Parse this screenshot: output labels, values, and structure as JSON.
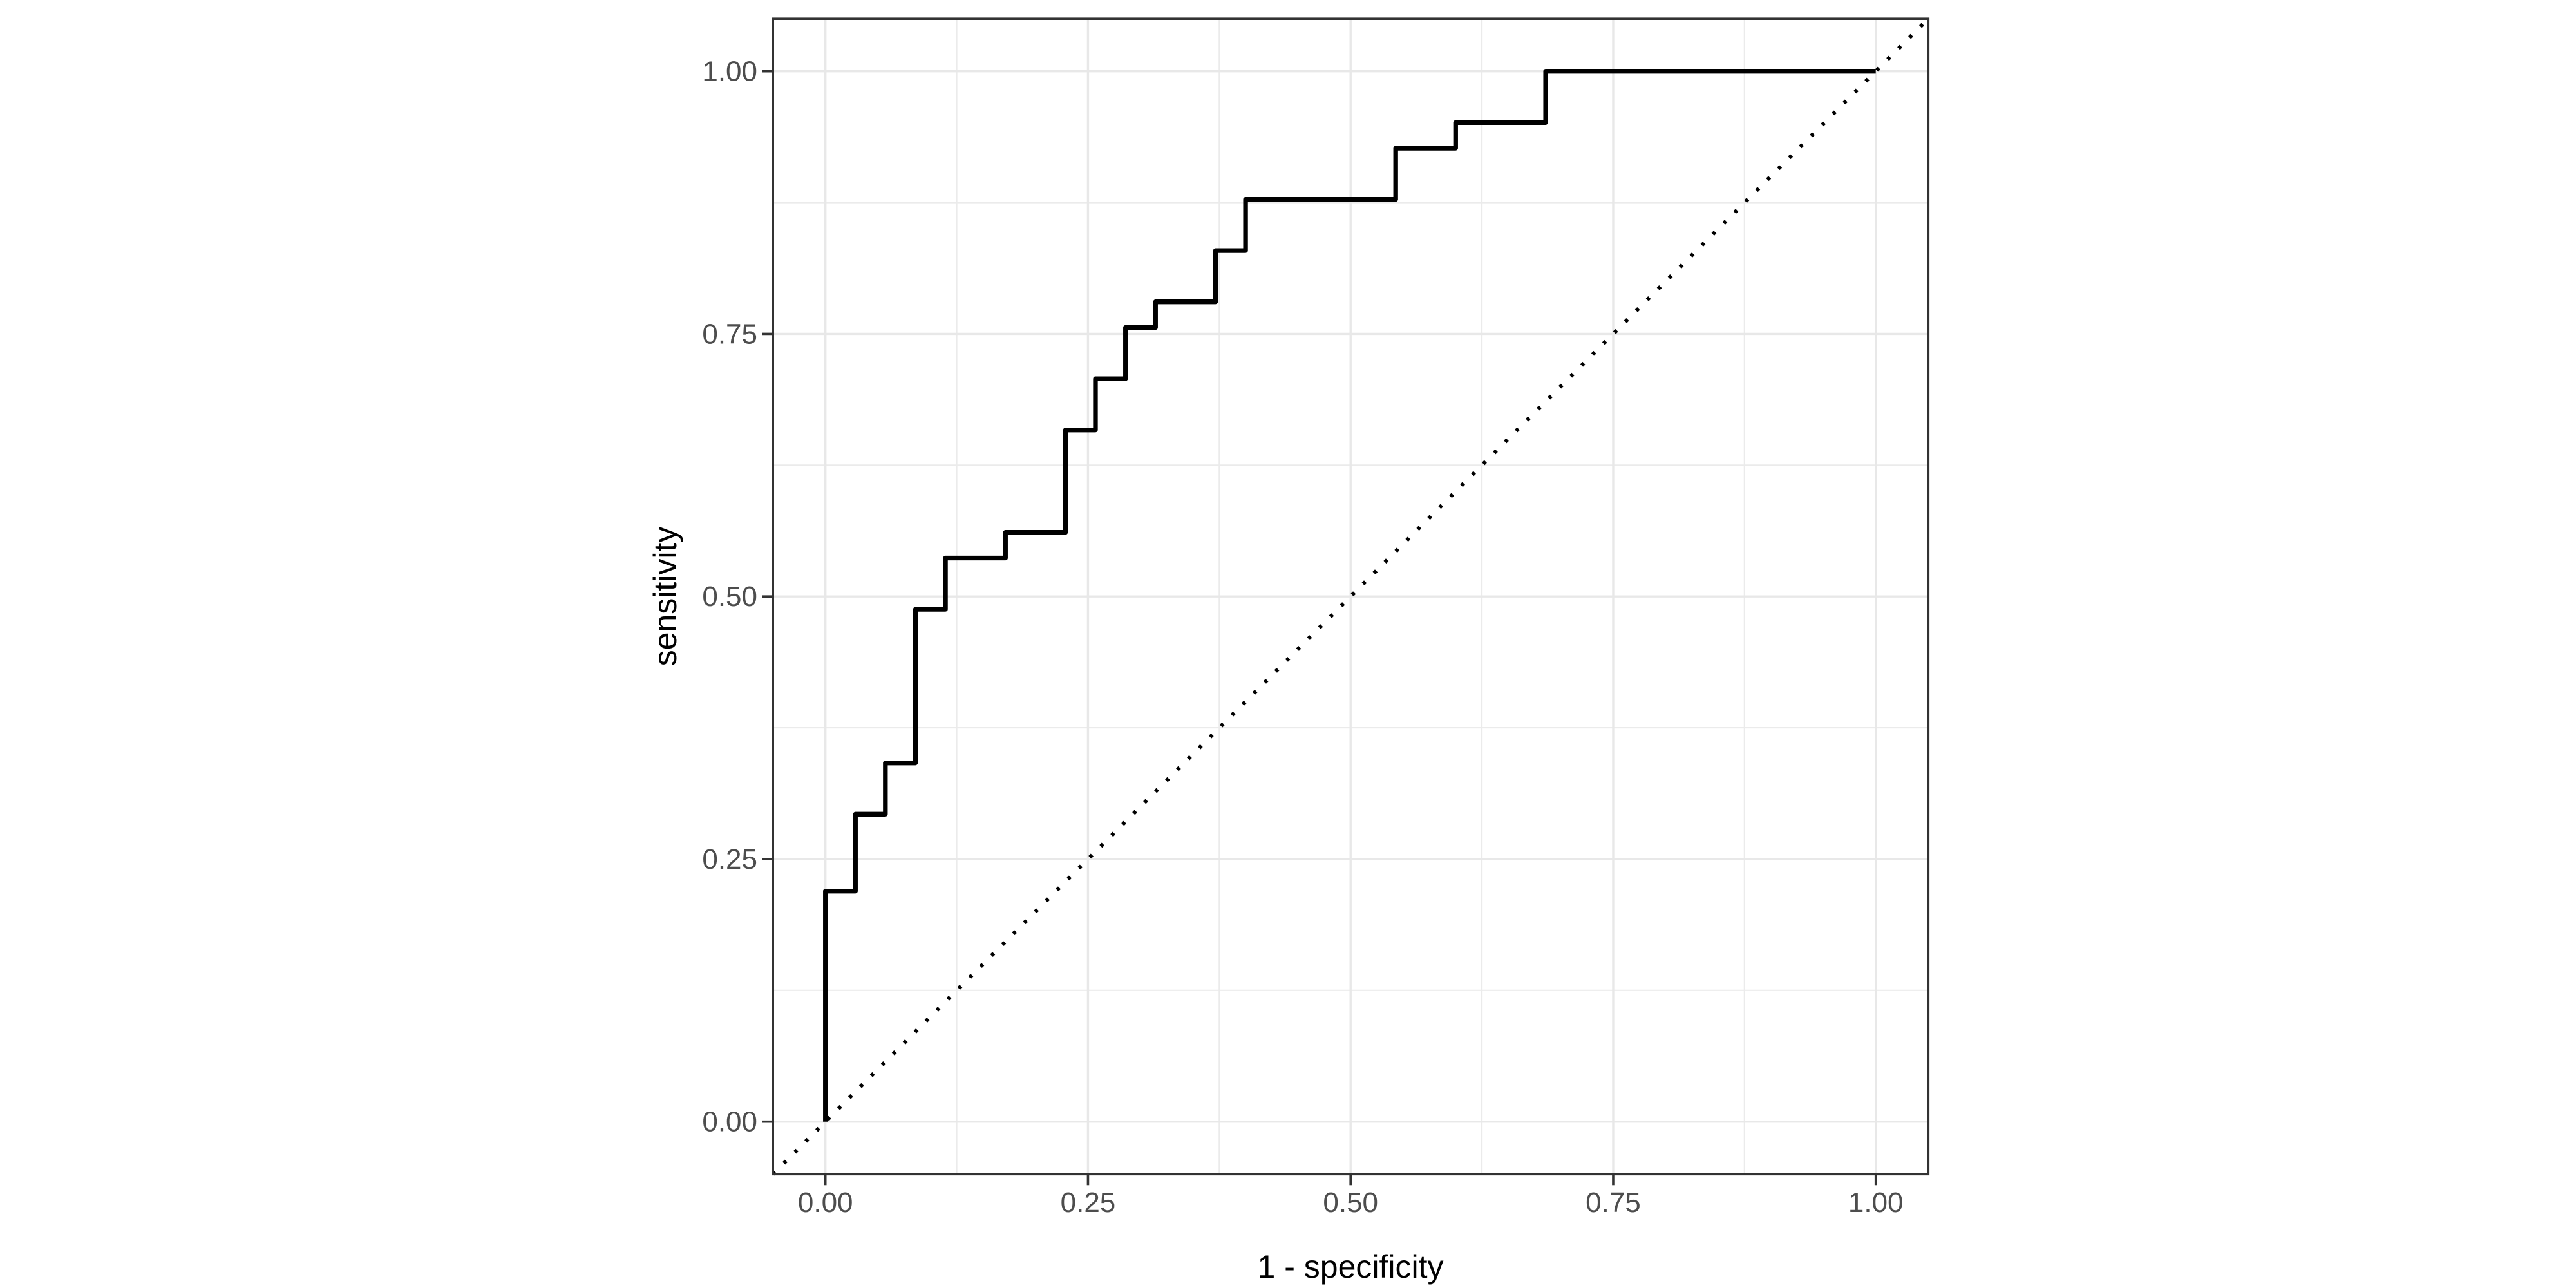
{
  "chart_data": {
    "type": "line",
    "subtype": "roc-step-curve",
    "title": "",
    "xlabel": "1 - specificity",
    "ylabel": "sensitivity",
    "xlim": [
      -0.05,
      1.05
    ],
    "ylim": [
      -0.05,
      1.05
    ],
    "grid": {
      "major": true,
      "minor": true
    },
    "legend_position": "none",
    "x_ticks": {
      "values": [
        0,
        0.25,
        0.5,
        0.75,
        1.0
      ],
      "labels": [
        "0.00",
        "0.25",
        "0.50",
        "0.75",
        "1.00"
      ]
    },
    "y_ticks": {
      "values": [
        0,
        0.25,
        0.5,
        0.75,
        1.0
      ],
      "labels": [
        "0.00",
        "0.25",
        "0.50",
        "0.75",
        "1.00"
      ]
    },
    "x_minor_gridlines": [
      0.125,
      0.375,
      0.625,
      0.875
    ],
    "y_minor_gridlines": [
      0.125,
      0.375,
      0.625,
      0.875
    ],
    "series": [
      {
        "name": "roc-curve",
        "type": "step",
        "color": "#000000",
        "points": [
          [
            0,
            0
          ],
          [
            0,
            0.2195
          ],
          [
            0.0286,
            0.2195
          ],
          [
            0.0286,
            0.2927
          ],
          [
            0.0571,
            0.2927
          ],
          [
            0.0571,
            0.3415
          ],
          [
            0.0857,
            0.3415
          ],
          [
            0.0857,
            0.4878
          ],
          [
            0.1143,
            0.4878
          ],
          [
            0.1143,
            0.5366
          ],
          [
            0.1714,
            0.5366
          ],
          [
            0.1714,
            0.561
          ],
          [
            0.2286,
            0.561
          ],
          [
            0.2286,
            0.6585
          ],
          [
            0.2571,
            0.6585
          ],
          [
            0.2571,
            0.7073
          ],
          [
            0.2857,
            0.7073
          ],
          [
            0.2857,
            0.7561
          ],
          [
            0.3143,
            0.7561
          ],
          [
            0.3143,
            0.7805
          ],
          [
            0.3714,
            0.7805
          ],
          [
            0.3714,
            0.8293
          ],
          [
            0.4,
            0.8293
          ],
          [
            0.4,
            0.878
          ],
          [
            0.5429,
            0.878
          ],
          [
            0.5429,
            0.9268
          ],
          [
            0.6,
            0.9268
          ],
          [
            0.6,
            0.9512
          ],
          [
            0.6857,
            0.9512
          ],
          [
            0.6857,
            1.0
          ],
          [
            1.0,
            1.0
          ]
        ]
      },
      {
        "name": "chance-diagonal",
        "type": "abline",
        "linetype": "dotted",
        "color": "#000000",
        "from": [
          0,
          0
        ],
        "to": [
          1,
          1
        ],
        "spans_full_panel": true
      }
    ],
    "colors": {
      "curve": "#000000",
      "diagonal": "#000000",
      "panel_border": "#333333",
      "tick_mark": "#333333",
      "gridline_major": "#e8e8e8",
      "gridline_minor": "#ebebeb",
      "tick_label": "#4d4d4d",
      "axis_title": "#000000",
      "background": "#ffffff"
    }
  }
}
